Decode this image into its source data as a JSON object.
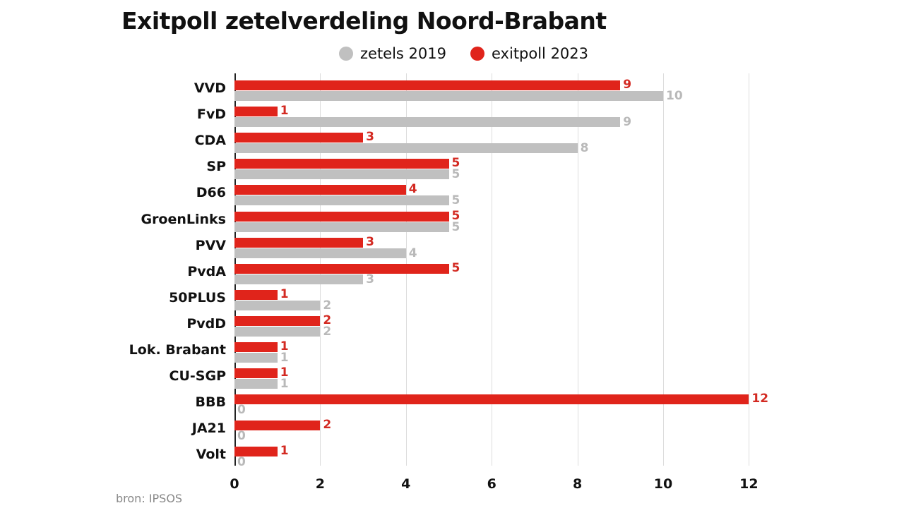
{
  "chart_data": {
    "type": "bar",
    "orientation": "horizontal",
    "title": "Exitpoll zetelverdeling Noord-Brabant",
    "xlabel": "",
    "ylabel": "",
    "xlim": [
      0,
      12
    ],
    "xticks": [
      "0",
      "2",
      "4",
      "6",
      "8",
      "10",
      "12"
    ],
    "grid": true,
    "legend_position": "top",
    "categories": [
      "VVD",
      "FvD",
      "CDA",
      "SP",
      "D66",
      "GroenLinks",
      "PVV",
      "PvdA",
      "50PLUS",
      "PvdD",
      "Lok. Brabant",
      "CU-SGP",
      "BBB",
      "JA21",
      "Volt"
    ],
    "series": [
      {
        "name": "exitpoll 2023",
        "color": "#e0241b",
        "values": [
          9,
          1,
          3,
          5,
          4,
          5,
          3,
          5,
          1,
          2,
          1,
          1,
          12,
          2,
          1
        ]
      },
      {
        "name": "zetels 2019",
        "color": "#c0c0c0",
        "values": [
          10,
          9,
          8,
          5,
          5,
          5,
          4,
          3,
          2,
          2,
          1,
          1,
          0,
          0,
          0
        ]
      }
    ],
    "source": "bron: IPSOS"
  },
  "header": {
    "title": "Exitpoll zetelverdeling Noord-Brabant"
  },
  "legend": [
    {
      "label": "zetels 2019",
      "color": "#c0c0c0"
    },
    {
      "label": "exitpoll 2023",
      "color": "#e0241b"
    }
  ],
  "footer": {
    "source": "bron: IPSOS"
  }
}
